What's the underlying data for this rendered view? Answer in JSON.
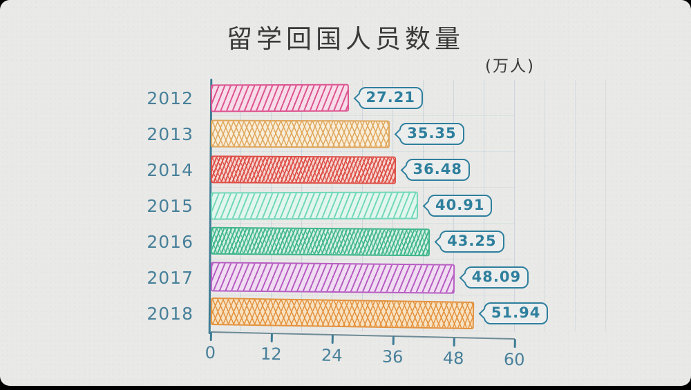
{
  "page": {
    "title": "留学回国人员数量",
    "unit_label": "(万人)"
  },
  "colors": {
    "paper": "#e9e9e7",
    "frame": "#000000",
    "title_text": "#3a3a3a",
    "axis": "#3e7c95",
    "tick_label": "#47809a",
    "year_label": "#47809a",
    "value_bubble": "#2e7f9d",
    "gridline": "#9db9cf"
  },
  "chart_data": {
    "type": "bar",
    "orientation": "horizontal",
    "title": "留学回国人员数量",
    "unit": "万人",
    "categories": [
      "2012",
      "2013",
      "2014",
      "2015",
      "2016",
      "2017",
      "2018"
    ],
    "values": [
      27.21,
      35.35,
      36.48,
      40.91,
      43.25,
      48.09,
      51.94
    ],
    "value_labels": [
      "27.21",
      "35.35",
      "36.48",
      "40.91",
      "43.25",
      "48.09",
      "51.94"
    ],
    "xlim": [
      0,
      60
    ],
    "x_ticks": [
      0,
      12,
      24,
      36,
      48,
      60
    ],
    "grid": true,
    "legend": "none",
    "bar_styles": [
      {
        "category": "2012",
        "stroke": "#dd5590",
        "tint": "#f7dde9",
        "texture": "diag"
      },
      {
        "category": "2013",
        "stroke": "#dfa65c",
        "tint": "#f8eed9",
        "texture": "cross"
      },
      {
        "category": "2014",
        "stroke": "#dd4f48",
        "tint": "#f5d8d2",
        "texture": "dense"
      },
      {
        "category": "2015",
        "stroke": "#72d8ba",
        "tint": "#e3f6ee",
        "texture": "diag"
      },
      {
        "category": "2016",
        "stroke": "#3fb58c",
        "tint": "#d9f1e7",
        "texture": "dense"
      },
      {
        "category": "2017",
        "stroke": "#b75ec2",
        "tint": "#f0ddf2",
        "texture": "diag"
      },
      {
        "category": "2018",
        "stroke": "#e3923f",
        "tint": "#f7e2c2",
        "texture": "cross"
      }
    ]
  }
}
